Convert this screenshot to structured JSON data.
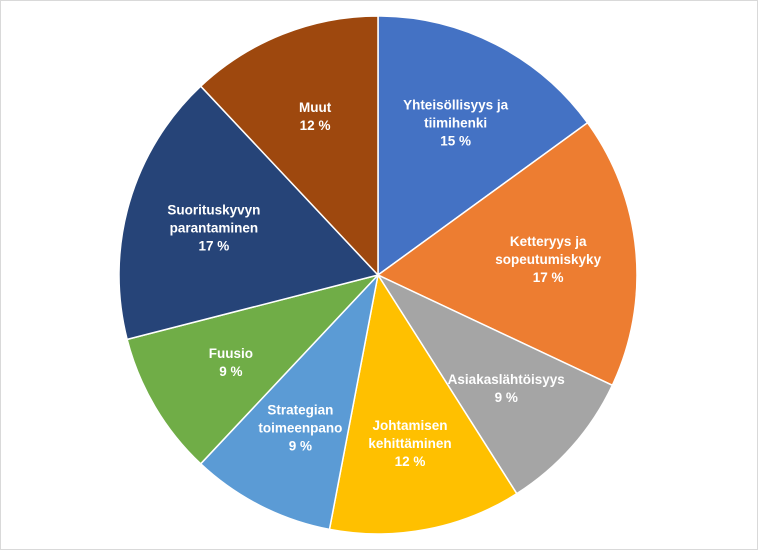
{
  "chart_data": {
    "type": "pie",
    "title": "",
    "start_angle_deg": 0,
    "direction": "clockwise",
    "legend": "none",
    "slices": [
      {
        "label": "Yhteisöllisyys ja tiimihenki",
        "label_lines": [
          "Yhteisöllisyys ja",
          "tiimihenki"
        ],
        "value": 15,
        "value_label": "15 %",
        "color": "#4472C4"
      },
      {
        "label": "Ketteryys ja sopeutumiskyky",
        "label_lines": [
          "Ketteryys ja",
          "sopeutumiskyky"
        ],
        "value": 17,
        "value_label": "17 %",
        "color": "#ED7D31"
      },
      {
        "label": "Asiakaslähtöisyys",
        "label_lines": [
          "Asiakaslähtöisyys"
        ],
        "value": 9,
        "value_label": "9 %",
        "color": "#A5A5A5"
      },
      {
        "label": "Johtamisen kehittäminen",
        "label_lines": [
          "Johtamisen",
          "kehittäminen"
        ],
        "value": 12,
        "value_label": "12 %",
        "color": "#FFC000"
      },
      {
        "label": "Strategian toimeenpano",
        "label_lines": [
          "Strategian",
          "toimeenpano"
        ],
        "value": 9,
        "value_label": "9 %",
        "color": "#5B9BD5"
      },
      {
        "label": "Fuusio",
        "label_lines": [
          "Fuusio"
        ],
        "value": 9,
        "value_label": "9 %",
        "color": "#70AD47"
      },
      {
        "label": "Suorituskyvyn parantaminen",
        "label_lines": [
          "Suorituskyvyn",
          "parantaminen"
        ],
        "value": 17,
        "value_label": "17 %",
        "color": "#264478"
      },
      {
        "label": "Muut",
        "label_lines": [
          "Muut"
        ],
        "value": 12,
        "value_label": "12 %",
        "color": "#9E480E"
      }
    ]
  }
}
